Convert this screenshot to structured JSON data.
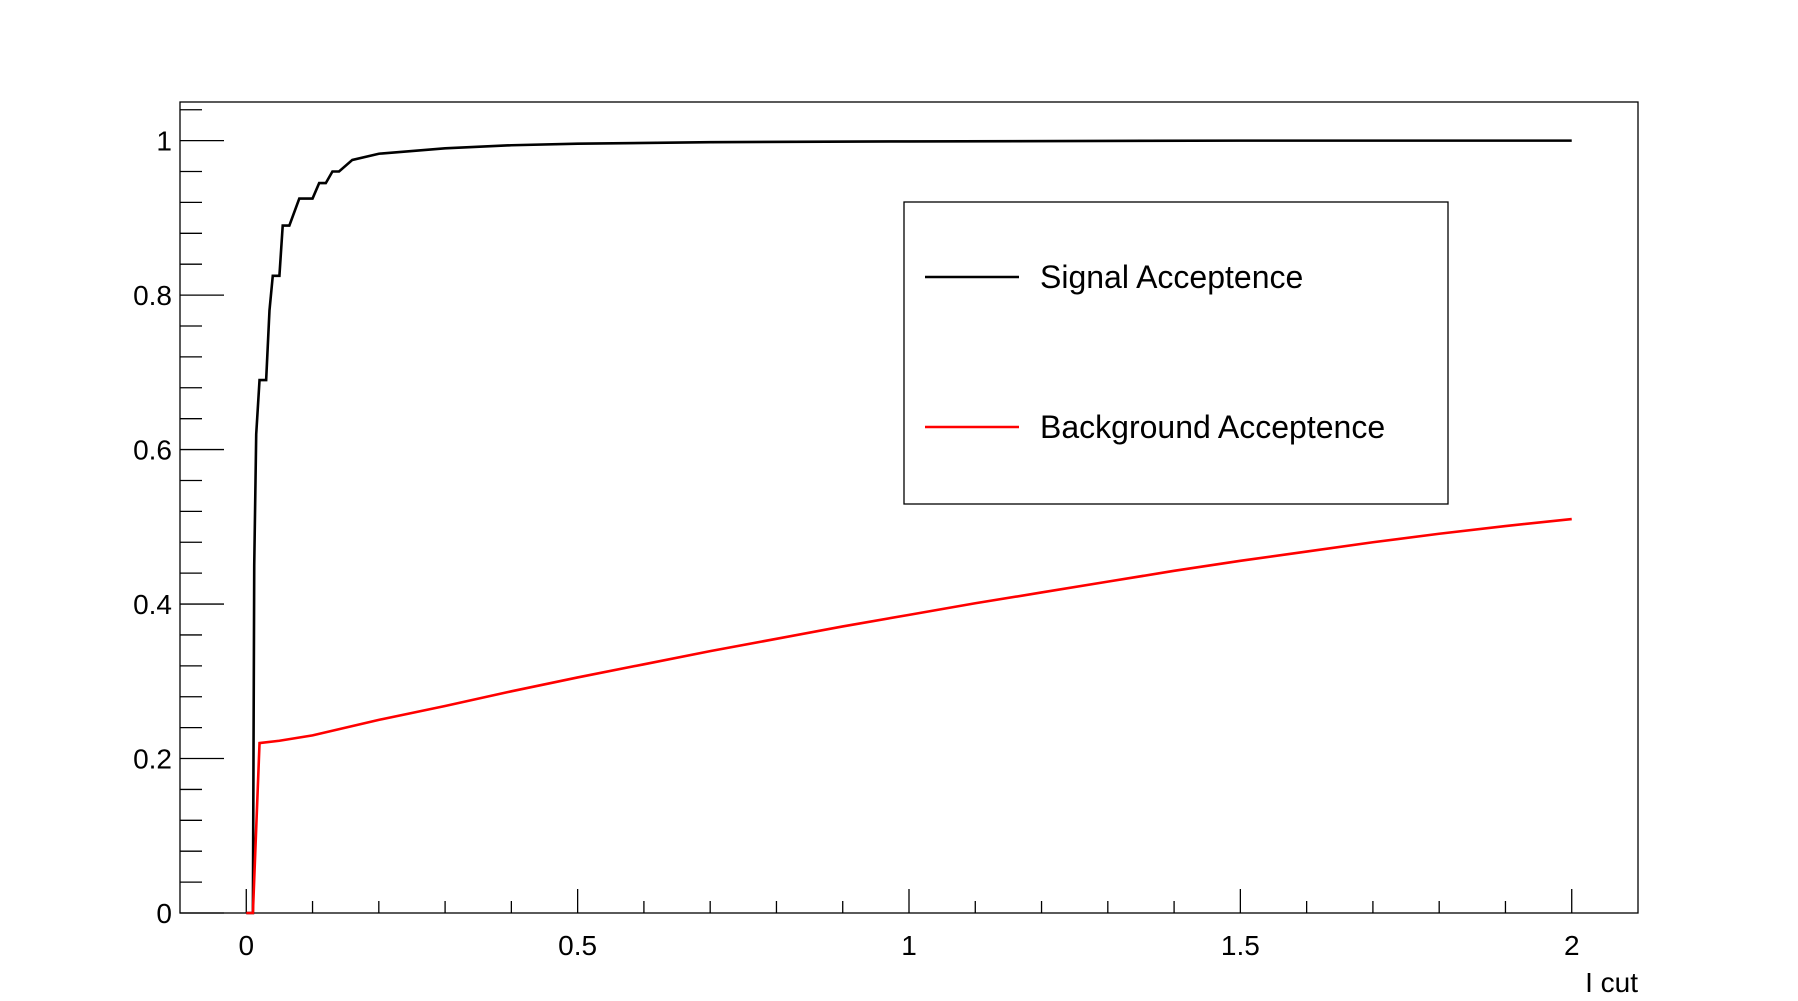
{
  "chart_data": {
    "type": "line",
    "title": "",
    "xlabel": "I cut",
    "ylabel": "",
    "xlim": [
      -0.1,
      2.1
    ],
    "ylim": [
      0,
      1.05
    ],
    "x_ticks": [
      0,
      0.5,
      1,
      1.5,
      2
    ],
    "x_tick_labels": [
      "0",
      "0.5",
      "1",
      "1.5",
      "2"
    ],
    "y_ticks": [
      0,
      0.2,
      0.4,
      0.6,
      0.8,
      1
    ],
    "y_tick_labels": [
      "0",
      "0.2",
      "0.4",
      "0.6",
      "0.8",
      "1"
    ],
    "grid": false,
    "legend_placement": "upper-right-inside",
    "series": [
      {
        "name": "Signal Acceptence",
        "color": "#000000",
        "points": [
          [
            0.0,
            0.0
          ],
          [
            0.01,
            0.0
          ],
          [
            0.012,
            0.45
          ],
          [
            0.015,
            0.62
          ],
          [
            0.02,
            0.69
          ],
          [
            0.03,
            0.69
          ],
          [
            0.035,
            0.78
          ],
          [
            0.04,
            0.825
          ],
          [
            0.05,
            0.825
          ],
          [
            0.055,
            0.89
          ],
          [
            0.065,
            0.89
          ],
          [
            0.08,
            0.925
          ],
          [
            0.1,
            0.925
          ],
          [
            0.11,
            0.945
          ],
          [
            0.12,
            0.945
          ],
          [
            0.13,
            0.96
          ],
          [
            0.14,
            0.96
          ],
          [
            0.16,
            0.975
          ],
          [
            0.2,
            0.983
          ],
          [
            0.3,
            0.99
          ],
          [
            0.4,
            0.994
          ],
          [
            0.5,
            0.996
          ],
          [
            0.7,
            0.998
          ],
          [
            1.0,
            0.999
          ],
          [
            1.5,
            1.0
          ],
          [
            2.0,
            1.0
          ]
        ]
      },
      {
        "name": "Background Acceptence",
        "color": "#ff0000",
        "points": [
          [
            0.0,
            0.0
          ],
          [
            0.01,
            0.0
          ],
          [
            0.02,
            0.22
          ],
          [
            0.05,
            0.223
          ],
          [
            0.1,
            0.23
          ],
          [
            0.15,
            0.24
          ],
          [
            0.2,
            0.25
          ],
          [
            0.3,
            0.268
          ],
          [
            0.4,
            0.287
          ],
          [
            0.5,
            0.305
          ],
          [
            0.6,
            0.322
          ],
          [
            0.7,
            0.339
          ],
          [
            0.8,
            0.355
          ],
          [
            0.9,
            0.371
          ],
          [
            1.0,
            0.386
          ],
          [
            1.1,
            0.401
          ],
          [
            1.2,
            0.415
          ],
          [
            1.3,
            0.429
          ],
          [
            1.4,
            0.443
          ],
          [
            1.5,
            0.456
          ],
          [
            1.6,
            0.468
          ],
          [
            1.7,
            0.48
          ],
          [
            1.8,
            0.491
          ],
          [
            1.9,
            0.501
          ],
          [
            2.0,
            0.51
          ]
        ]
      }
    ]
  }
}
